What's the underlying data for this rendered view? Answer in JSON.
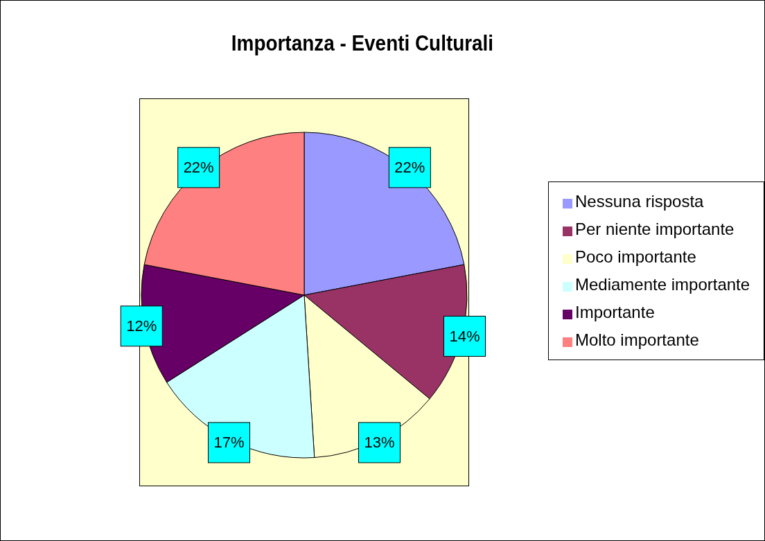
{
  "chart_data": {
    "type": "pie",
    "title": "Importanza - Eventi Culturali",
    "categories": [
      "Nessuna risposta",
      "Per niente importante",
      "Poco importante",
      "Mediamente importante",
      "Importante",
      "Molto importante"
    ],
    "values": [
      22,
      14,
      13,
      17,
      12,
      22
    ],
    "value_labels": [
      "22%",
      "14%",
      "13%",
      "17%",
      "12%",
      "22%"
    ],
    "colors": [
      "#9999ff",
      "#993366",
      "#ffffcc",
      "#ccffff",
      "#660066",
      "#ff8080"
    ],
    "legend": "right"
  }
}
